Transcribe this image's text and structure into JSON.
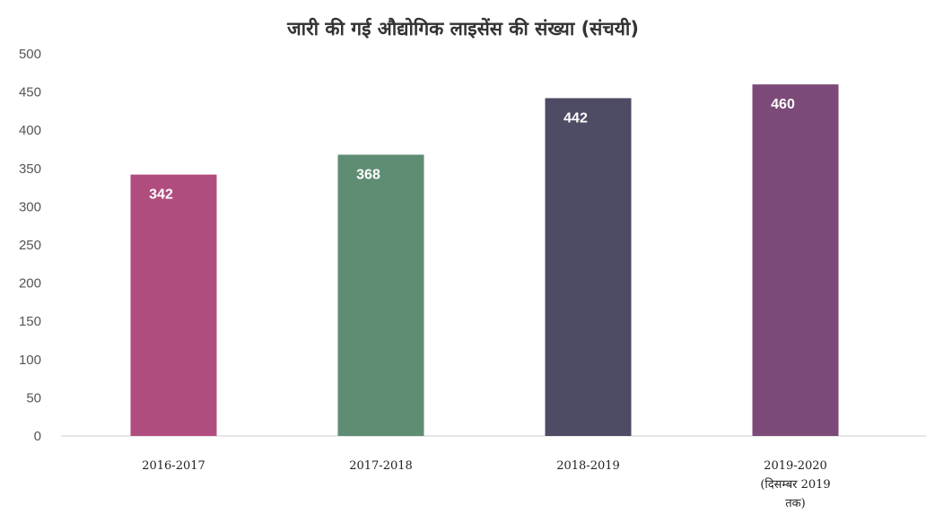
{
  "chart_data": {
    "type": "bar",
    "title": "जारी की गई औद्योगिक लाइसेंस की संख्या (संचयी)",
    "categories": [
      [
        "2016-2017"
      ],
      [
        "2017-2018"
      ],
      [
        "2018-2019"
      ],
      [
        "2019-2020",
        "(दिसम्बर 2019",
        "तक)"
      ]
    ],
    "values": [
      342,
      368,
      442,
      460
    ],
    "data_labels": [
      "342",
      "368",
      "442",
      "460"
    ],
    "colors": [
      "#b04d7e",
      "#5f8d74",
      "#4e4b64",
      "#7c4a78"
    ],
    "ylim": [
      0,
      500
    ],
    "yticks": [
      "0",
      "50",
      "100",
      "150",
      "200",
      "250",
      "300",
      "350",
      "400",
      "450",
      "500"
    ],
    "xlabel": "",
    "ylabel": "",
    "grid": false,
    "legend": "none"
  }
}
